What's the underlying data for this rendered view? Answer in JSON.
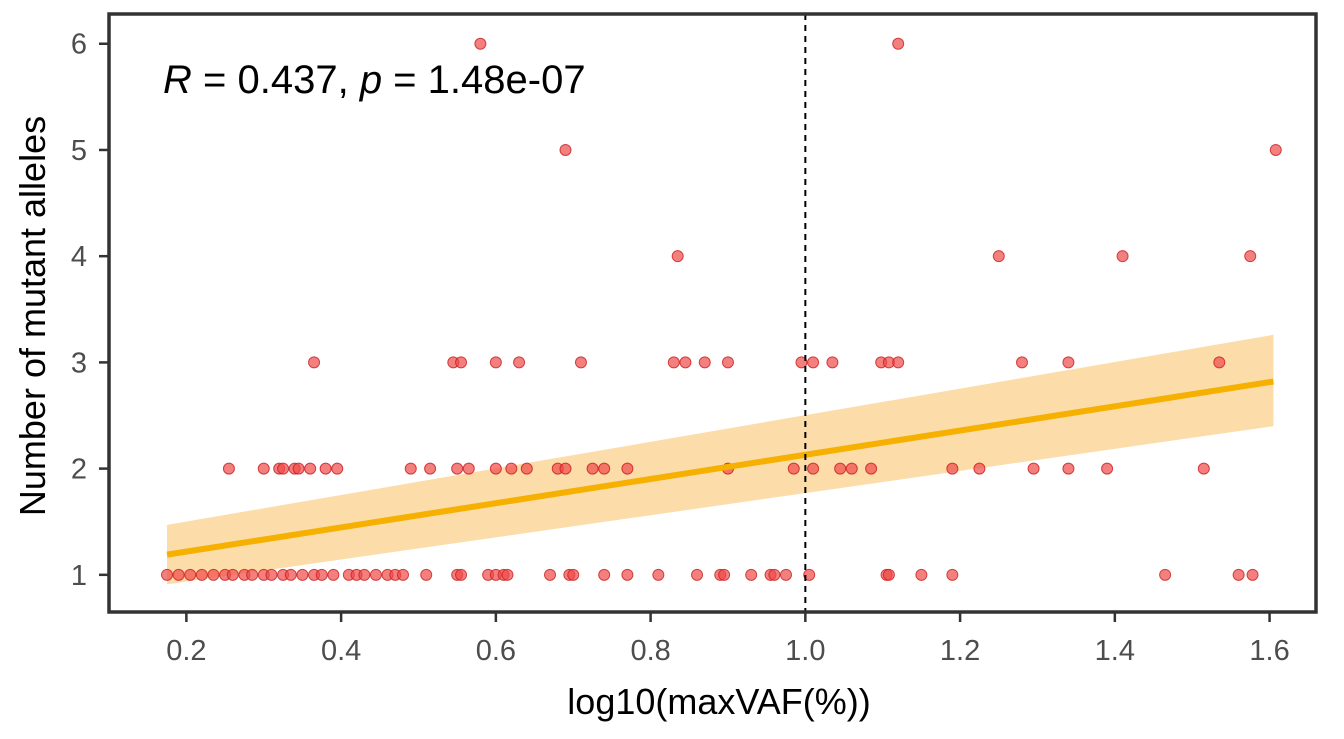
{
  "chart_data": {
    "type": "scatter",
    "xlabel": "log10(maxVAF(%))",
    "ylabel": "Number of mutant alleles",
    "annotation": {
      "r_label": "R",
      "r_value": " = 0.437, ",
      "p_label": "p",
      "p_value": " = 1.48e-07"
    },
    "xlim": [
      0.1,
      1.66
    ],
    "ylim": [
      0.65,
      6.28
    ],
    "xticks": [
      "0.2",
      "0.4",
      "0.6",
      "0.8",
      "1.0",
      "1.2",
      "1.4",
      "1.6"
    ],
    "yticks": [
      "1",
      "2",
      "3",
      "4",
      "5",
      "6"
    ],
    "reference_line": {
      "x": 1.0,
      "style": "dashed"
    },
    "regression": {
      "x_range": [
        0.175,
        1.605
      ],
      "fit": [
        1.19,
        2.82
      ],
      "ci_lower": [
        0.91,
        2.4
      ],
      "ci_upper": [
        1.47,
        3.26
      ]
    },
    "colors": {
      "points": "#f04848",
      "point_edge": "#c81e1e",
      "fit_line": "#f5b000",
      "ci_band": "#fcd699",
      "frame": "#333333"
    },
    "points": [
      [
        0.175,
        1
      ],
      [
        0.19,
        1
      ],
      [
        0.205,
        1
      ],
      [
        0.22,
        1
      ],
      [
        0.235,
        1
      ],
      [
        0.25,
        1
      ],
      [
        0.26,
        1
      ],
      [
        0.275,
        1
      ],
      [
        0.285,
        1
      ],
      [
        0.3,
        1
      ],
      [
        0.31,
        1
      ],
      [
        0.325,
        1
      ],
      [
        0.335,
        1
      ],
      [
        0.35,
        1
      ],
      [
        0.365,
        1
      ],
      [
        0.375,
        1
      ],
      [
        0.39,
        1
      ],
      [
        0.41,
        1
      ],
      [
        0.42,
        1
      ],
      [
        0.43,
        1
      ],
      [
        0.445,
        1
      ],
      [
        0.46,
        1
      ],
      [
        0.47,
        1
      ],
      [
        0.48,
        1
      ],
      [
        0.51,
        1
      ],
      [
        0.55,
        1
      ],
      [
        0.555,
        1
      ],
      [
        0.59,
        1
      ],
      [
        0.6,
        1
      ],
      [
        0.61,
        1
      ],
      [
        0.615,
        1
      ],
      [
        0.67,
        1
      ],
      [
        0.695,
        1
      ],
      [
        0.7,
        1
      ],
      [
        0.74,
        1
      ],
      [
        0.77,
        1
      ],
      [
        0.81,
        1
      ],
      [
        0.86,
        1
      ],
      [
        0.89,
        1
      ],
      [
        0.895,
        1
      ],
      [
        0.93,
        1
      ],
      [
        0.955,
        1
      ],
      [
        0.96,
        1
      ],
      [
        0.975,
        1
      ],
      [
        1.005,
        1
      ],
      [
        1.105,
        1
      ],
      [
        1.108,
        1
      ],
      [
        1.15,
        1
      ],
      [
        1.19,
        1
      ],
      [
        1.465,
        1
      ],
      [
        1.56,
        1
      ],
      [
        1.578,
        1
      ],
      [
        0.255,
        2
      ],
      [
        0.3,
        2
      ],
      [
        0.32,
        2
      ],
      [
        0.325,
        2
      ],
      [
        0.34,
        2
      ],
      [
        0.345,
        2
      ],
      [
        0.36,
        2
      ],
      [
        0.38,
        2
      ],
      [
        0.395,
        2
      ],
      [
        0.49,
        2
      ],
      [
        0.515,
        2
      ],
      [
        0.55,
        2
      ],
      [
        0.565,
        2
      ],
      [
        0.6,
        2
      ],
      [
        0.62,
        2
      ],
      [
        0.64,
        2
      ],
      [
        0.68,
        2
      ],
      [
        0.69,
        2
      ],
      [
        0.725,
        2
      ],
      [
        0.74,
        2
      ],
      [
        0.77,
        2
      ],
      [
        0.9,
        2
      ],
      [
        0.985,
        2
      ],
      [
        1.01,
        2
      ],
      [
        1.045,
        2
      ],
      [
        1.06,
        2
      ],
      [
        1.085,
        2
      ],
      [
        1.19,
        2
      ],
      [
        1.225,
        2
      ],
      [
        1.295,
        2
      ],
      [
        1.34,
        2
      ],
      [
        1.39,
        2
      ],
      [
        1.515,
        2
      ],
      [
        0.365,
        3
      ],
      [
        0.545,
        3
      ],
      [
        0.555,
        3
      ],
      [
        0.6,
        3
      ],
      [
        0.63,
        3
      ],
      [
        0.71,
        3
      ],
      [
        0.83,
        3
      ],
      [
        0.845,
        3
      ],
      [
        0.87,
        3
      ],
      [
        0.9,
        3
      ],
      [
        0.995,
        3
      ],
      [
        1.01,
        3
      ],
      [
        1.035,
        3
      ],
      [
        1.098,
        3
      ],
      [
        1.108,
        3
      ],
      [
        1.12,
        3
      ],
      [
        1.28,
        3
      ],
      [
        1.34,
        3
      ],
      [
        1.535,
        3
      ],
      [
        0.835,
        4
      ],
      [
        1.25,
        4
      ],
      [
        1.41,
        4
      ],
      [
        1.575,
        4
      ],
      [
        0.69,
        5
      ],
      [
        1.608,
        5
      ],
      [
        0.58,
        6
      ],
      [
        1.12,
        6
      ]
    ]
  }
}
